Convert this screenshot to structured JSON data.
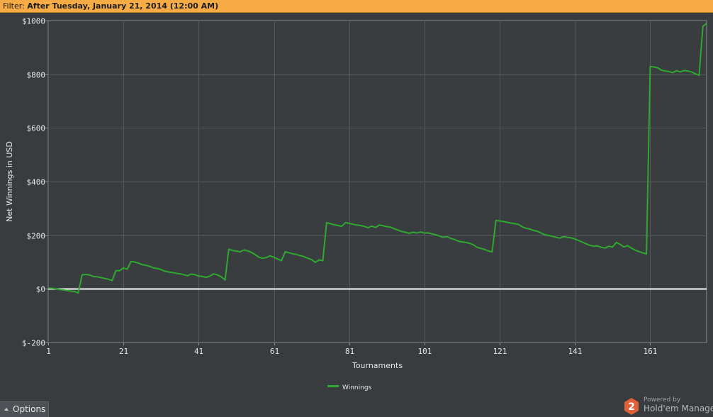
{
  "filter": {
    "label": "Filter: ",
    "value": "After Tuesday, January 21, 2014 (12:00 AM)"
  },
  "colors": {
    "background": "#393c3f",
    "filter_bar": "#f6ab44",
    "series": "#2ea82e",
    "zero_line": "#ffffff",
    "grid": "#55585c"
  },
  "chart_data": {
    "type": "line",
    "xlabel": "Tournaments",
    "ylabel": "Net Winnings in USD",
    "xlim": [
      1,
      176
    ],
    "ylim": [
      -200,
      1000
    ],
    "x_ticks": [
      1,
      21,
      41,
      61,
      81,
      101,
      121,
      141,
      161
    ],
    "y_ticks": [
      -200,
      0,
      200,
      400,
      600,
      800,
      1000
    ],
    "y_tick_labels": [
      "$-200",
      "$0",
      "$200",
      "$400",
      "$600",
      "$800",
      "$1000"
    ],
    "grid": true,
    "legend_position": "bottom-center",
    "series": [
      {
        "name": "Winnings",
        "color": "#2ea82e",
        "points": [
          [
            1,
            3
          ],
          [
            2,
            2
          ],
          [
            3,
            0
          ],
          [
            4,
            -2
          ],
          [
            5,
            -4
          ],
          [
            6,
            -6
          ],
          [
            7,
            -8
          ],
          [
            8,
            -10
          ],
          [
            9,
            -15
          ],
          [
            10,
            52
          ],
          [
            11,
            54
          ],
          [
            12,
            52
          ],
          [
            13,
            46
          ],
          [
            14,
            45
          ],
          [
            15,
            42
          ],
          [
            16,
            39
          ],
          [
            17,
            36
          ],
          [
            18,
            31
          ],
          [
            19,
            68
          ],
          [
            20,
            68
          ],
          [
            21,
            78
          ],
          [
            22,
            73
          ],
          [
            23,
            102
          ],
          [
            24,
            100
          ],
          [
            25,
            96
          ],
          [
            26,
            90
          ],
          [
            27,
            88
          ],
          [
            28,
            84
          ],
          [
            29,
            78
          ],
          [
            30,
            76
          ],
          [
            31,
            72
          ],
          [
            32,
            66
          ],
          [
            33,
            63
          ],
          [
            34,
            61
          ],
          [
            35,
            58
          ],
          [
            36,
            56
          ],
          [
            37,
            53
          ],
          [
            38,
            49
          ],
          [
            39,
            55
          ],
          [
            40,
            53
          ],
          [
            41,
            48
          ],
          [
            42,
            46
          ],
          [
            43,
            43
          ],
          [
            44,
            48
          ],
          [
            45,
            56
          ],
          [
            46,
            52
          ],
          [
            47,
            45
          ],
          [
            48,
            33
          ],
          [
            49,
            148
          ],
          [
            50,
            143
          ],
          [
            51,
            141
          ],
          [
            52,
            138
          ],
          [
            53,
            145
          ],
          [
            54,
            142
          ],
          [
            55,
            136
          ],
          [
            56,
            128
          ],
          [
            57,
            118
          ],
          [
            58,
            114
          ],
          [
            59,
            117
          ],
          [
            60,
            123
          ],
          [
            61,
            118
          ],
          [
            62,
            111
          ],
          [
            63,
            105
          ],
          [
            64,
            138
          ],
          [
            65,
            135
          ],
          [
            66,
            131
          ],
          [
            67,
            128
          ],
          [
            68,
            124
          ],
          [
            69,
            120
          ],
          [
            70,
            114
          ],
          [
            71,
            109
          ],
          [
            72,
            99
          ],
          [
            73,
            108
          ],
          [
            74,
            105
          ],
          [
            75,
            247
          ],
          [
            76,
            243
          ],
          [
            77,
            239
          ],
          [
            78,
            236
          ],
          [
            79,
            233
          ],
          [
            80,
            247
          ],
          [
            81,
            244
          ],
          [
            82,
            241
          ],
          [
            83,
            238
          ],
          [
            84,
            236
          ],
          [
            85,
            233
          ],
          [
            86,
            228
          ],
          [
            87,
            234
          ],
          [
            88,
            229
          ],
          [
            89,
            238
          ],
          [
            90,
            235
          ],
          [
            91,
            232
          ],
          [
            92,
            230
          ],
          [
            93,
            224
          ],
          [
            94,
            219
          ],
          [
            95,
            214
          ],
          [
            96,
            211
          ],
          [
            97,
            207
          ],
          [
            98,
            211
          ],
          [
            99,
            208
          ],
          [
            100,
            212
          ],
          [
            101,
            208
          ],
          [
            102,
            209
          ],
          [
            103,
            205
          ],
          [
            104,
            202
          ],
          [
            105,
            197
          ],
          [
            106,
            192
          ],
          [
            107,
            195
          ],
          [
            108,
            188
          ],
          [
            109,
            184
          ],
          [
            110,
            178
          ],
          [
            111,
            175
          ],
          [
            112,
            173
          ],
          [
            113,
            170
          ],
          [
            114,
            164
          ],
          [
            115,
            155
          ],
          [
            116,
            151
          ],
          [
            117,
            147
          ],
          [
            118,
            141
          ],
          [
            119,
            138
          ],
          [
            120,
            255
          ],
          [
            121,
            253
          ],
          [
            122,
            251
          ],
          [
            123,
            248
          ],
          [
            124,
            245
          ],
          [
            125,
            243
          ],
          [
            126,
            240
          ],
          [
            127,
            231
          ],
          [
            128,
            226
          ],
          [
            129,
            223
          ],
          [
            130,
            218
          ],
          [
            131,
            215
          ],
          [
            132,
            208
          ],
          [
            133,
            202
          ],
          [
            134,
            199
          ],
          [
            135,
            196
          ],
          [
            136,
            192
          ],
          [
            137,
            189
          ],
          [
            138,
            195
          ],
          [
            139,
            192
          ],
          [
            140,
            190
          ],
          [
            141,
            186
          ],
          [
            142,
            180
          ],
          [
            143,
            174
          ],
          [
            144,
            168
          ],
          [
            145,
            162
          ],
          [
            146,
            159
          ],
          [
            147,
            160
          ],
          [
            148,
            155
          ],
          [
            149,
            152
          ],
          [
            150,
            159
          ],
          [
            151,
            156
          ],
          [
            152,
            173
          ],
          [
            153,
            166
          ],
          [
            154,
            156
          ],
          [
            155,
            161
          ],
          [
            156,
            152
          ],
          [
            157,
            145
          ],
          [
            158,
            139
          ],
          [
            159,
            134
          ],
          [
            160,
            130
          ],
          [
            161,
            829
          ],
          [
            162,
            827
          ],
          [
            163,
            824
          ],
          [
            164,
            815
          ],
          [
            165,
            812
          ],
          [
            166,
            810
          ],
          [
            167,
            806
          ],
          [
            168,
            813
          ],
          [
            169,
            809
          ],
          [
            170,
            814
          ],
          [
            171,
            812
          ],
          [
            172,
            808
          ],
          [
            173,
            802
          ],
          [
            174,
            796
          ],
          [
            175,
            978
          ],
          [
            176,
            990
          ]
        ]
      }
    ]
  },
  "options": {
    "label": "Options"
  },
  "branding": {
    "powered": "Powered by",
    "name": "Hold'em Manager",
    "logo_digit": "2",
    "logo_color": "#e0603a"
  }
}
